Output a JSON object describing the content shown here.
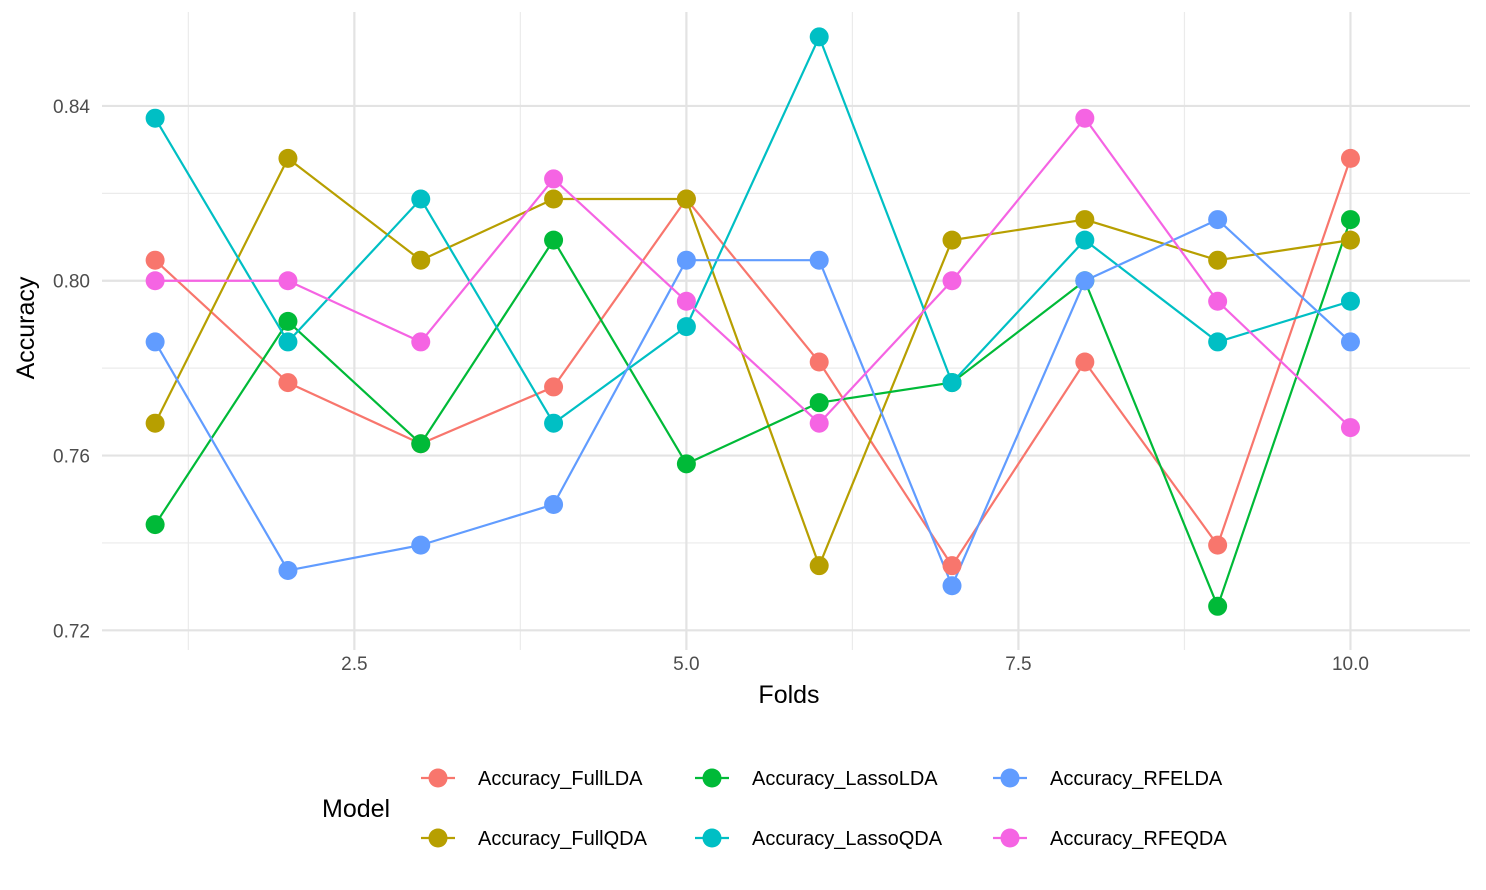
{
  "chart_data": {
    "type": "line",
    "title": "",
    "xlabel": "Folds",
    "ylabel": "Accuracy",
    "xlim": [
      0.6,
      10.9
    ],
    "ylim": [
      0.7155,
      0.8615
    ],
    "x_ticks": [
      2.5,
      5.0,
      7.5,
      10.0
    ],
    "x_tick_labels": [
      "2.5",
      "5.0",
      "7.5",
      "10.0"
    ],
    "x_minor_ticks": [
      1.25,
      3.75,
      6.25,
      8.75
    ],
    "y_ticks": [
      0.72,
      0.76,
      0.8,
      0.84
    ],
    "y_tick_labels": [
      "0.72",
      "0.76",
      "0.80",
      "0.84"
    ],
    "y_minor_ticks": [
      0.74,
      0.78,
      0.82
    ],
    "grid": true,
    "legend": {
      "title": "Model",
      "position": "bottom"
    },
    "x": [
      1,
      2,
      3,
      4,
      5,
      6,
      7,
      8,
      9,
      10
    ],
    "series": [
      {
        "name": "Accuracy_FullLDA",
        "color": "#F8766D",
        "values": [
          0.8047,
          0.7767,
          0.7627,
          0.7757,
          0.8187,
          0.7814,
          0.7348,
          0.7814,
          0.7395,
          0.828
        ]
      },
      {
        "name": "Accuracy_FullQDA",
        "color": "#B79F00",
        "values": [
          0.7674,
          0.828,
          0.8047,
          0.8187,
          0.8187,
          0.7348,
          0.8093,
          0.814,
          0.8047,
          0.8093
        ]
      },
      {
        "name": "Accuracy_LassoLDA",
        "color": "#00BA38",
        "values": [
          0.7442,
          0.7907,
          0.7627,
          0.8093,
          0.7581,
          0.7721,
          0.7767,
          0.8,
          0.7255,
          0.814
        ]
      },
      {
        "name": "Accuracy_LassoQDA",
        "color": "#00BFC4",
        "values": [
          0.8372,
          0.786,
          0.8187,
          0.7674,
          0.7895,
          0.8558,
          0.7767,
          0.8093,
          0.786,
          0.7953
        ]
      },
      {
        "name": "Accuracy_RFELDA",
        "color": "#619CFF",
        "values": [
          0.786,
          0.7337,
          0.7395,
          0.7488,
          0.8047,
          0.8047,
          0.7302,
          0.8,
          0.814,
          0.786
        ]
      },
      {
        "name": "Accuracy_RFEQDA",
        "color": "#F564E3",
        "values": [
          0.8,
          0.8,
          0.786,
          0.8233,
          0.7953,
          0.7674,
          0.8,
          0.8372,
          0.7953,
          0.7664
        ]
      }
    ]
  }
}
